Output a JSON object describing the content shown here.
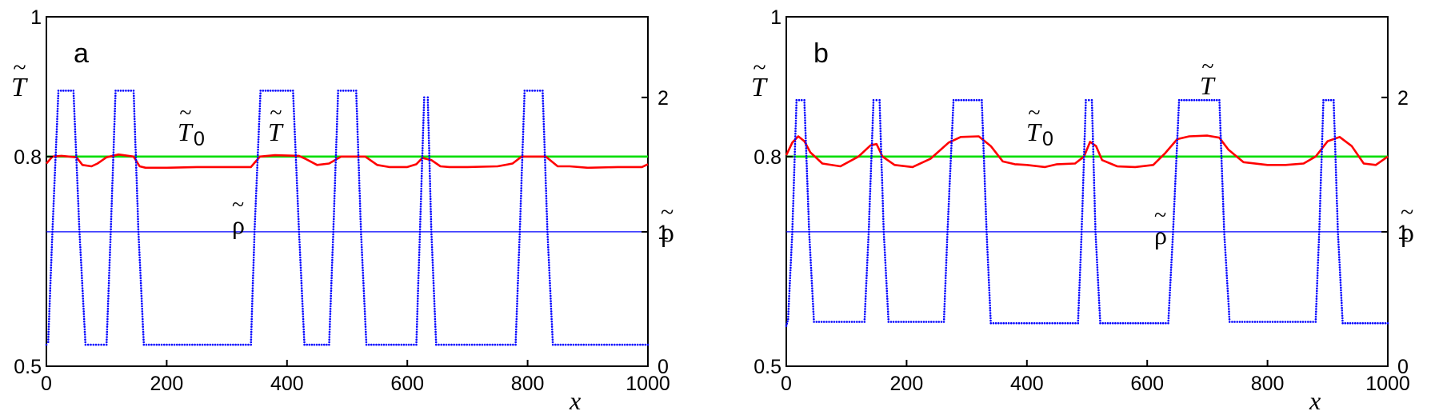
{
  "chart_data": [
    {
      "type": "line",
      "panel_label": "a",
      "title": "",
      "xlabel": "x",
      "x_ticks": [
        "0",
        "200",
        "400",
        "600",
        "800",
        "1000"
      ],
      "xlim": [
        0,
        1000
      ],
      "left_axis": {
        "label": "T",
        "label_tilde": "~",
        "ylim": [
          0.5,
          1.0
        ],
        "ticks": [
          "0.5",
          "0.8",
          "1"
        ]
      },
      "right_axis": {
        "label": "ρ",
        "label_tilde": "~",
        "ylim": [
          0,
          2.6
        ],
        "ticks": [
          "0",
          "1",
          "2"
        ]
      },
      "annotations": [
        {
          "text": "T",
          "tilde": "~",
          "sub": "0"
        },
        {
          "text": "T",
          "tilde": "~"
        },
        {
          "text": "ρ",
          "tilde": "~"
        }
      ],
      "series": [
        {
          "name": "T0",
          "axis": "left",
          "style": "line",
          "color": "#00dd00",
          "x": [
            0,
            1000
          ],
          "y": [
            0.8,
            0.8
          ]
        },
        {
          "name": "T",
          "axis": "left",
          "style": "line",
          "color": "#ff0000",
          "x": [
            0,
            10,
            25,
            50,
            60,
            75,
            85,
            100,
            120,
            145,
            155,
            165,
            200,
            250,
            300,
            340,
            345,
            355,
            380,
            420,
            430,
            450,
            470,
            490,
            530,
            550,
            570,
            600,
            615,
            625,
            640,
            655,
            670,
            700,
            750,
            775,
            790,
            830,
            850,
            870,
            900,
            950,
            990,
            1000
          ],
          "y": [
            0.79,
            0.8,
            0.801,
            0.799,
            0.788,
            0.786,
            0.79,
            0.799,
            0.803,
            0.8,
            0.786,
            0.784,
            0.784,
            0.785,
            0.785,
            0.785,
            0.79,
            0.8,
            0.802,
            0.801,
            0.797,
            0.788,
            0.79,
            0.8,
            0.8,
            0.788,
            0.785,
            0.785,
            0.789,
            0.798,
            0.795,
            0.786,
            0.785,
            0.785,
            0.786,
            0.79,
            0.8,
            0.8,
            0.786,
            0.786,
            0.784,
            0.785,
            0.785,
            0.789
          ]
        },
        {
          "name": "rho",
          "axis": "right",
          "style": "dotted",
          "color": "#0000ff",
          "x": [
            0,
            3,
            10,
            20,
            45,
            55,
            65,
            100,
            107,
            115,
            145,
            153,
            162,
            340,
            346,
            356,
            410,
            420,
            429,
            470,
            477,
            485,
            515,
            523,
            532,
            615,
            621,
            628,
            634,
            640,
            648,
            780,
            787,
            795,
            825,
            833,
            842,
            1000
          ],
          "y": [
            0.16,
            0.18,
            1.0,
            2.05,
            2.05,
            1.0,
            0.16,
            0.16,
            1.0,
            2.05,
            2.05,
            1.0,
            0.16,
            0.16,
            1.0,
            2.05,
            2.05,
            1.0,
            0.16,
            0.16,
            1.0,
            2.05,
            2.05,
            1.0,
            0.16,
            0.16,
            1.0,
            2.0,
            2.0,
            1.0,
            0.16,
            0.16,
            1.0,
            2.05,
            2.05,
            1.0,
            0.16,
            0.16
          ]
        },
        {
          "name": "rho=1",
          "axis": "right",
          "style": "line",
          "color": "#0000ff",
          "x": [
            0,
            1000
          ],
          "y": [
            1.0,
            1.0
          ]
        }
      ]
    },
    {
      "type": "line",
      "panel_label": "b",
      "title": "",
      "xlabel": "x",
      "x_ticks": [
        "0",
        "200",
        "400",
        "600",
        "800",
        "1000"
      ],
      "xlim": [
        0,
        1000
      ],
      "left_axis": {
        "label": "T",
        "label_tilde": "~",
        "ylim": [
          0.5,
          1.0
        ],
        "ticks": [
          "0.5",
          "0.8",
          "1"
        ]
      },
      "right_axis": {
        "label": "ρ",
        "label_tilde": "~",
        "ylim": [
          0,
          2.6
        ],
        "ticks": [
          "0",
          "1",
          "2"
        ]
      },
      "annotations": [
        {
          "text": "T",
          "tilde": "~",
          "sub": "0"
        },
        {
          "text": "T",
          "tilde": "~"
        },
        {
          "text": "ρ",
          "tilde": "~"
        }
      ],
      "series": [
        {
          "name": "T0",
          "axis": "left",
          "style": "line",
          "color": "#00dd00",
          "x": [
            0,
            1000
          ],
          "y": [
            0.8,
            0.8
          ]
        },
        {
          "name": "T",
          "axis": "left",
          "style": "line",
          "color": "#ff0000",
          "x": [
            0,
            10,
            20,
            30,
            40,
            60,
            90,
            120,
            140,
            150,
            160,
            180,
            210,
            240,
            270,
            290,
            320,
            340,
            360,
            380,
            400,
            430,
            450,
            480,
            495,
            505,
            515,
            525,
            550,
            580,
            610,
            630,
            650,
            670,
            700,
            720,
            735,
            760,
            800,
            830,
            860,
            880,
            900,
            920,
            940,
            960,
            980,
            1000
          ],
          "y": [
            0.802,
            0.82,
            0.829,
            0.822,
            0.806,
            0.79,
            0.786,
            0.8,
            0.816,
            0.818,
            0.8,
            0.788,
            0.785,
            0.797,
            0.82,
            0.828,
            0.829,
            0.815,
            0.793,
            0.789,
            0.788,
            0.785,
            0.789,
            0.79,
            0.8,
            0.821,
            0.815,
            0.795,
            0.786,
            0.785,
            0.788,
            0.805,
            0.825,
            0.829,
            0.83,
            0.827,
            0.81,
            0.792,
            0.788,
            0.788,
            0.79,
            0.8,
            0.822,
            0.828,
            0.815,
            0.79,
            0.788,
            0.8
          ]
        },
        {
          "name": "rho",
          "axis": "right",
          "style": "dotted",
          "color": "#0000ff",
          "x": [
            0,
            3,
            10,
            17,
            30,
            38,
            46,
            130,
            137,
            145,
            155,
            162,
            170,
            262,
            268,
            278,
            325,
            333,
            340,
            485,
            491,
            498,
            508,
            514,
            522,
            635,
            643,
            653,
            720,
            728,
            737,
            880,
            886,
            893,
            910,
            917,
            925,
            1000
          ],
          "y": [
            0.3,
            0.35,
            1.0,
            1.98,
            1.98,
            1.0,
            0.33,
            0.33,
            1.0,
            1.98,
            1.98,
            1.0,
            0.33,
            0.33,
            1.0,
            1.98,
            1.98,
            1.0,
            0.32,
            0.32,
            1.0,
            1.98,
            1.98,
            1.0,
            0.32,
            0.32,
            1.0,
            1.98,
            1.98,
            1.0,
            0.33,
            0.33,
            1.0,
            1.98,
            1.98,
            1.0,
            0.32,
            0.32
          ]
        },
        {
          "name": "rho=1",
          "axis": "right",
          "style": "line",
          "color": "#0000ff",
          "x": [
            0,
            1000
          ],
          "y": [
            1.0,
            1.0
          ]
        }
      ]
    }
  ]
}
